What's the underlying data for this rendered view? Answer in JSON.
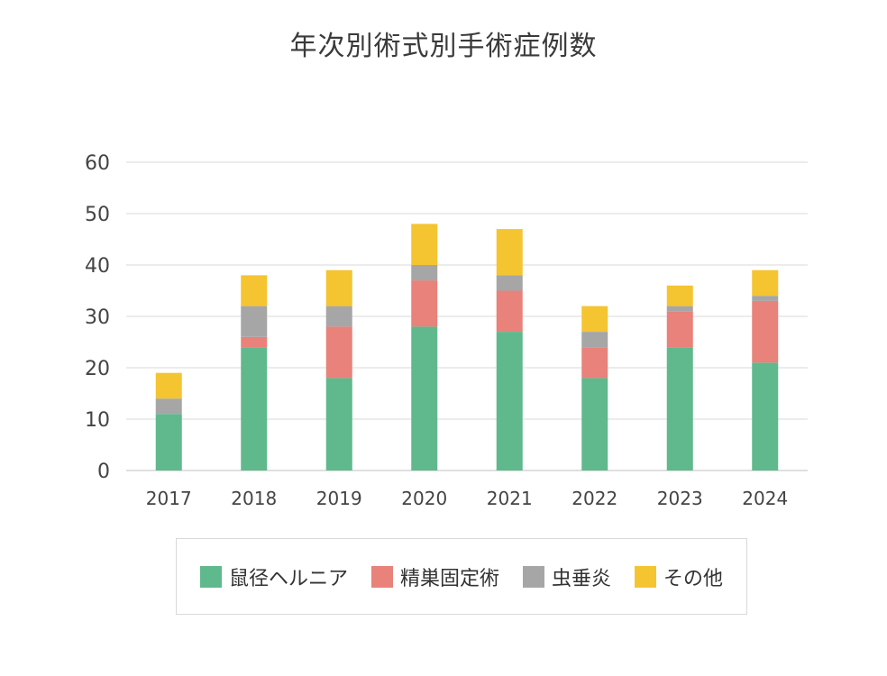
{
  "chart_data": {
    "type": "bar",
    "stacked": true,
    "title": "年次別術式別手術症例数",
    "categories": [
      "2017",
      "2018",
      "2019",
      "2020",
      "2021",
      "2022",
      "2023",
      "2024"
    ],
    "series": [
      {
        "name": "鼠径ヘルニア",
        "color": "#5fb98d",
        "values": [
          11,
          24,
          18,
          28,
          27,
          18,
          24,
          21
        ]
      },
      {
        "name": "精巣固定術",
        "color": "#e8827a",
        "values": [
          0,
          2,
          10,
          9,
          8,
          6,
          7,
          12
        ]
      },
      {
        "name": "虫垂炎",
        "color": "#a6a6a6",
        "values": [
          3,
          6,
          4,
          3,
          3,
          3,
          1,
          1
        ]
      },
      {
        "name": "その他",
        "color": "#f5c431",
        "values": [
          5,
          6,
          7,
          8,
          9,
          5,
          4,
          5
        ]
      }
    ],
    "y_ticks": [
      "0",
      "10",
      "20",
      "30",
      "40",
      "50",
      "60"
    ],
    "ylim": [
      0,
      60
    ],
    "grid": true,
    "legend_position": "bottom"
  }
}
